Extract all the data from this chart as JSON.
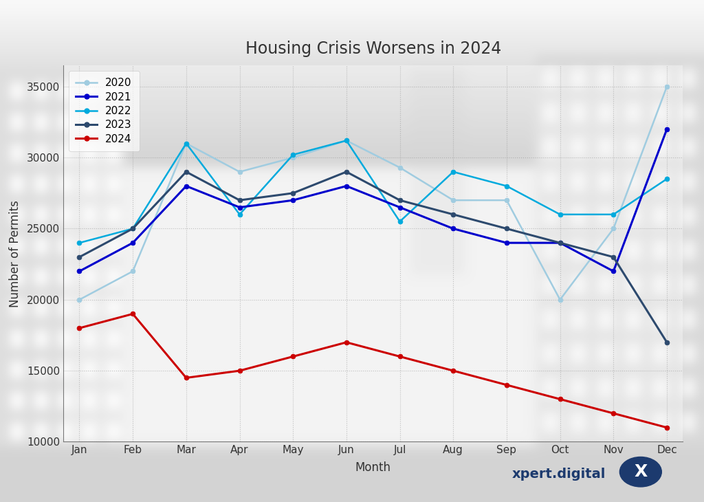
{
  "title": "Housing Crisis Worsens in 2024",
  "xlabel": "Month",
  "ylabel": "Number of Permits",
  "months": [
    "Jan",
    "Feb",
    "Mar",
    "Apr",
    "May",
    "Jun",
    "Jul",
    "Aug",
    "Sep",
    "Oct",
    "Nov",
    "Dec"
  ],
  "series": {
    "2020": {
      "values": [
        20000,
        22000,
        31000,
        29000,
        30000,
        31200,
        29300,
        27000,
        27000,
        20000,
        25000,
        35000
      ],
      "color": "#a0cce0",
      "linewidth": 1.8,
      "marker": "o",
      "markersize": 5,
      "zorder": 2
    },
    "2021": {
      "values": [
        22000,
        24000,
        28000,
        26500,
        27000,
        28000,
        26500,
        25000,
        24000,
        24000,
        22000,
        32000
      ],
      "color": "#0000cc",
      "linewidth": 2.2,
      "marker": "o",
      "markersize": 5,
      "zorder": 4
    },
    "2022": {
      "values": [
        24000,
        25000,
        31000,
        26000,
        30200,
        31200,
        25500,
        29000,
        28000,
        26000,
        26000,
        28500
      ],
      "color": "#00aadd",
      "linewidth": 1.8,
      "marker": "o",
      "markersize": 5,
      "zorder": 3
    },
    "2023": {
      "values": [
        23000,
        25000,
        29000,
        27000,
        27500,
        29000,
        27000,
        26000,
        25000,
        24000,
        23000,
        17000
      ],
      "color": "#2d4a6e",
      "linewidth": 2.2,
      "marker": "o",
      "markersize": 5,
      "zorder": 5
    },
    "2024": {
      "values": [
        18000,
        19000,
        14500,
        15000,
        16000,
        17000,
        16000,
        15000,
        14000,
        13000,
        12000,
        11000
      ],
      "color": "#cc0000",
      "linewidth": 2.2,
      "marker": "o",
      "markersize": 5,
      "zorder": 6
    }
  },
  "ylim": [
    10000,
    36500
  ],
  "yticks": [
    10000,
    15000,
    20000,
    25000,
    30000,
    35000
  ],
  "grid_color": "#888888",
  "grid_alpha": 0.5,
  "legend_order": [
    "2020",
    "2021",
    "2022",
    "2023",
    "2024"
  ],
  "watermark_text": "xpert.digital",
  "watermark_text_color": "#1c3a6e",
  "watermark_circle_color": "#1c3a6e",
  "title_fontsize": 17,
  "axis_label_fontsize": 12,
  "tick_fontsize": 11,
  "legend_fontsize": 11
}
